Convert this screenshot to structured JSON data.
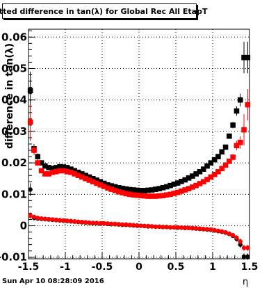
{
  "title": "Fitted difference in tan(λ) for Global Rec All EtapT",
  "footer_timestamp": "Sun Apr 10 08:28:09 2016",
  "chart_data": {
    "type": "scatter",
    "title": "Fitted difference in tan(λ) for Global Rec All EtapT",
    "xlabel": "η",
    "ylabel": "difference in tan(λ)",
    "xlim": [
      -1.5,
      1.5
    ],
    "ylim": [
      -0.0105,
      0.0625
    ],
    "grid": true,
    "x_ticks": [
      "-1.5",
      "-1",
      "-0.5",
      "0",
      "0.5",
      "1",
      "1.5"
    ],
    "y_ticks": [
      "-0.01",
      "0",
      "0.01",
      "0.02",
      "0.03",
      "0.04",
      "0.05",
      "0.06"
    ],
    "x": [
      -1.475,
      -1.425,
      -1.375,
      -1.325,
      -1.275,
      -1.225,
      -1.175,
      -1.125,
      -1.075,
      -1.025,
      -0.975,
      -0.925,
      -0.875,
      -0.825,
      -0.775,
      -0.725,
      -0.675,
      -0.625,
      -0.575,
      -0.525,
      -0.475,
      -0.425,
      -0.375,
      -0.325,
      -0.275,
      -0.225,
      -0.175,
      -0.125,
      -0.075,
      -0.025,
      0.025,
      0.075,
      0.125,
      0.175,
      0.225,
      0.275,
      0.325,
      0.375,
      0.425,
      0.475,
      0.525,
      0.575,
      0.625,
      0.675,
      0.725,
      0.775,
      0.825,
      0.875,
      0.925,
      0.975,
      1.025,
      1.075,
      1.125,
      1.175,
      1.225,
      1.275,
      1.325,
      1.375,
      1.425,
      1.475
    ],
    "series": [
      {
        "color": "#000000",
        "marker": "square",
        "values": [
          0.043,
          0.0245,
          0.022,
          0.02,
          0.019,
          0.0185,
          0.0182,
          0.0185,
          0.0188,
          0.0187,
          0.0185,
          0.018,
          0.0175,
          0.017,
          0.0165,
          0.016,
          0.0155,
          0.015,
          0.0145,
          0.014,
          0.0135,
          0.013,
          0.0127,
          0.0124,
          0.0121,
          0.0119,
          0.0117,
          0.0115,
          0.0114,
          0.0113,
          0.0112,
          0.0112,
          0.0113,
          0.0114,
          0.0116,
          0.0118,
          0.0121,
          0.0124,
          0.0128,
          0.0132,
          0.0136,
          0.0141,
          0.0146,
          0.0152,
          0.0158,
          0.0165,
          0.0172,
          0.018,
          0.019,
          0.02,
          0.021,
          0.022,
          0.0235,
          0.025,
          0.0285,
          0.032,
          0.0365,
          0.04,
          0.0535,
          0.0535
        ],
        "errors": [
          0.006,
          0.0015,
          0.001,
          0.0008,
          0.0006,
          0.0005,
          0.0005,
          0.0004,
          0.0004,
          0.0004,
          0.0004,
          0.0004,
          0.0004,
          0.0004,
          0.0004,
          0.0004,
          0.0004,
          0.0004,
          0.0004,
          0.0004,
          0.0004,
          0.0004,
          0.0004,
          0.0004,
          0.0004,
          0.0004,
          0.0004,
          0.0004,
          0.0004,
          0.0004,
          0.0004,
          0.0004,
          0.0004,
          0.0004,
          0.0004,
          0.0004,
          0.0004,
          0.0004,
          0.0004,
          0.0004,
          0.0004,
          0.0004,
          0.0004,
          0.0004,
          0.0004,
          0.0004,
          0.0004,
          0.0004,
          0.0004,
          0.0004,
          0.0004,
          0.0004,
          0.0005,
          0.0006,
          0.0008,
          0.001,
          0.0015,
          0.002,
          0.005,
          0.005
        ]
      },
      {
        "color": "#ff0000",
        "marker": "square",
        "values": [
          0.033,
          0.024,
          0.02,
          0.0175,
          0.0165,
          0.0165,
          0.017,
          0.0172,
          0.0175,
          0.0175,
          0.0172,
          0.017,
          0.0165,
          0.016,
          0.0155,
          0.015,
          0.0145,
          0.014,
          0.0135,
          0.013,
          0.0125,
          0.012,
          0.0116,
          0.0112,
          0.0108,
          0.0105,
          0.0102,
          0.01,
          0.0098,
          0.0097,
          0.0096,
          0.0095,
          0.0094,
          0.0094,
          0.0094,
          0.0095,
          0.0096,
          0.0098,
          0.01,
          0.0103,
          0.0106,
          0.011,
          0.0114,
          0.0118,
          0.0123,
          0.0128,
          0.0134,
          0.014,
          0.0147,
          0.0155,
          0.0163,
          0.0172,
          0.0182,
          0.0193,
          0.0205,
          0.0218,
          0.0255,
          0.0265,
          0.0305,
          0.0385
        ],
        "errors": [
          0.006,
          0.0015,
          0.001,
          0.0008,
          0.0006,
          0.0005,
          0.0005,
          0.0004,
          0.0004,
          0.0004,
          0.0004,
          0.0004,
          0.0004,
          0.0004,
          0.0004,
          0.0004,
          0.0004,
          0.0004,
          0.0004,
          0.0004,
          0.0004,
          0.0004,
          0.0004,
          0.0004,
          0.0004,
          0.0004,
          0.0004,
          0.0004,
          0.0004,
          0.0004,
          0.0004,
          0.0004,
          0.0004,
          0.0004,
          0.0004,
          0.0004,
          0.0004,
          0.0004,
          0.0004,
          0.0004,
          0.0004,
          0.0004,
          0.0004,
          0.0004,
          0.0004,
          0.0004,
          0.0004,
          0.0004,
          0.0004,
          0.0004,
          0.0004,
          0.0004,
          0.0005,
          0.0006,
          0.0008,
          0.001,
          0.0015,
          0.002,
          0.005,
          0.005
        ]
      },
      {
        "color": "#000000",
        "marker": "circle",
        "values": [
          0.0115,
          0.0025,
          0.0023,
          0.0022,
          0.0021,
          0.002,
          0.0019,
          0.0018,
          0.0017,
          0.0016,
          0.0015,
          0.0014,
          0.0013,
          0.0012,
          0.0011,
          0.001,
          0.0009,
          0.0008,
          0.0008,
          0.0007,
          0.0007,
          0.0006,
          0.0005,
          0.0005,
          0.0004,
          0.0003,
          0.0003,
          0.0002,
          0.0001,
          0.0,
          0.0,
          -0.0001,
          -0.0002,
          -0.0002,
          -0.0003,
          -0.0003,
          -0.0004,
          -0.0004,
          -0.0005,
          -0.0005,
          -0.0006,
          -0.0006,
          -0.0007,
          -0.0007,
          -0.0008,
          -0.0009,
          -0.001,
          -0.0011,
          -0.0012,
          -0.0013,
          -0.0015,
          -0.0017,
          -0.0019,
          -0.0022,
          -0.0026,
          -0.0032,
          -0.0042,
          -0.006,
          -0.0098,
          -0.0098
        ],
        "errors": [
          0.002,
          0.0008,
          0.0006,
          0.0005,
          0.0004,
          0.0003,
          0.0003,
          0.0003,
          0.0003,
          0.0003,
          0.0003,
          0.0003,
          0.0003,
          0.0003,
          0.0003,
          0.0003,
          0.0003,
          0.0003,
          0.0003,
          0.0003,
          0.0003,
          0.0003,
          0.0003,
          0.0003,
          0.0003,
          0.0003,
          0.0003,
          0.0003,
          0.0003,
          0.0003,
          0.0003,
          0.0003,
          0.0003,
          0.0003,
          0.0003,
          0.0003,
          0.0003,
          0.0003,
          0.0003,
          0.0003,
          0.0003,
          0.0003,
          0.0003,
          0.0003,
          0.0003,
          0.0003,
          0.0003,
          0.0003,
          0.0003,
          0.0003,
          0.0003,
          0.0003,
          0.0003,
          0.0004,
          0.0005,
          0.0006,
          0.0008,
          0.001,
          0.001,
          0.001
        ]
      },
      {
        "color": "#ff0000",
        "marker": "circle",
        "values": [
          0.0032,
          0.0028,
          0.0025,
          0.0023,
          0.0022,
          0.0021,
          0.002,
          0.0019,
          0.0018,
          0.0017,
          0.0016,
          0.0015,
          0.0014,
          0.0013,
          0.0012,
          0.0011,
          0.001,
          0.0009,
          0.0009,
          0.0008,
          0.0008,
          0.0007,
          0.0006,
          0.0006,
          0.0005,
          0.0004,
          0.0004,
          0.0003,
          0.0002,
          0.0001,
          0.0,
          -0.0001,
          -0.0001,
          -0.0002,
          -0.0003,
          -0.0003,
          -0.0004,
          -0.0004,
          -0.0005,
          -0.0005,
          -0.0005,
          -0.0006,
          -0.0006,
          -0.0007,
          -0.0007,
          -0.0008,
          -0.0009,
          -0.001,
          -0.0011,
          -0.0012,
          -0.0014,
          -0.0016,
          -0.0018,
          -0.0021,
          -0.0025,
          -0.003,
          -0.0038,
          -0.005,
          -0.007,
          -0.007
        ],
        "errors": [
          0.001,
          0.0006,
          0.0005,
          0.0004,
          0.0004,
          0.0003,
          0.0003,
          0.0003,
          0.0003,
          0.0003,
          0.0003,
          0.0003,
          0.0003,
          0.0003,
          0.0003,
          0.0003,
          0.0003,
          0.0003,
          0.0003,
          0.0003,
          0.0003,
          0.0003,
          0.0003,
          0.0003,
          0.0003,
          0.0003,
          0.0003,
          0.0003,
          0.0003,
          0.0003,
          0.0003,
          0.0003,
          0.0003,
          0.0003,
          0.0003,
          0.0003,
          0.0003,
          0.0003,
          0.0003,
          0.0003,
          0.0003,
          0.0003,
          0.0003,
          0.0003,
          0.0003,
          0.0003,
          0.0003,
          0.0003,
          0.0003,
          0.0003,
          0.0003,
          0.0003,
          0.0003,
          0.0004,
          0.0005,
          0.0006,
          0.0008,
          0.001,
          0.001,
          0.001
        ]
      }
    ]
  }
}
